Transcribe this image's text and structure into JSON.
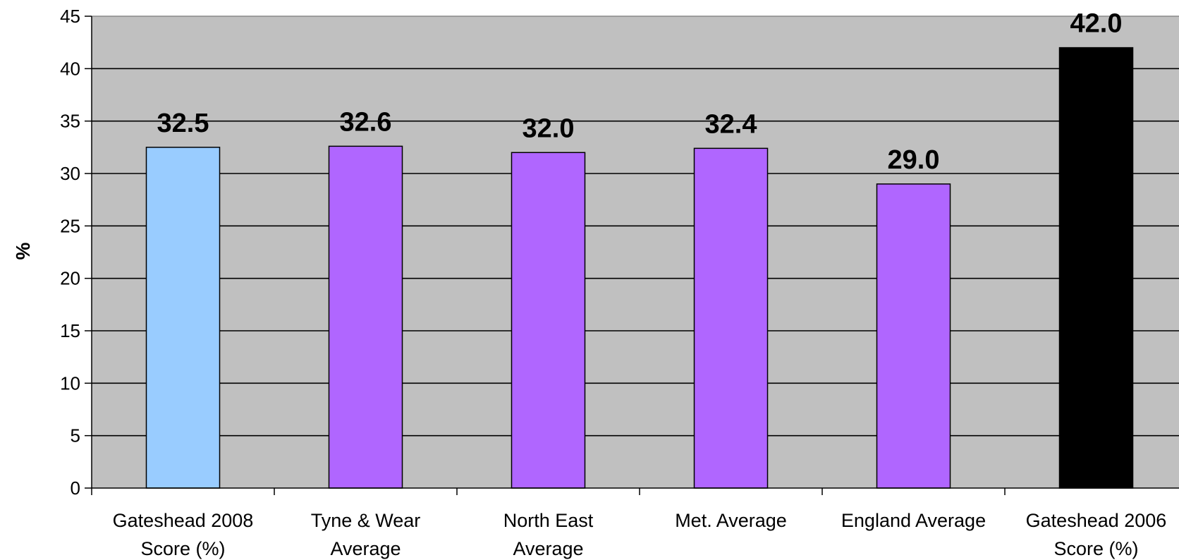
{
  "chart_data": {
    "type": "bar",
    "title": "",
    "xlabel": "",
    "ylabel": "%",
    "ylim": [
      0,
      45
    ],
    "ytick_step": 5,
    "grid": true,
    "legend": "none",
    "categories": [
      [
        "Gateshead 2008",
        "Score (%)"
      ],
      [
        "Tyne & Wear",
        "Average"
      ],
      [
        "North East",
        "Average"
      ],
      [
        "Met. Average"
      ],
      [
        "England Average"
      ],
      [
        "Gateshead 2006",
        "Score (%)"
      ]
    ],
    "values": [
      32.5,
      32.6,
      32.0,
      32.4,
      29.0,
      42.0
    ],
    "data_labels": [
      "32.5",
      "32.6",
      "32.0",
      "32.4",
      "29.0",
      "42.0"
    ],
    "colors": [
      "#99ccff",
      "#b066ff",
      "#b066ff",
      "#b066ff",
      "#b066ff",
      "#000000"
    ],
    "plot_background": "#c0c0c0"
  }
}
